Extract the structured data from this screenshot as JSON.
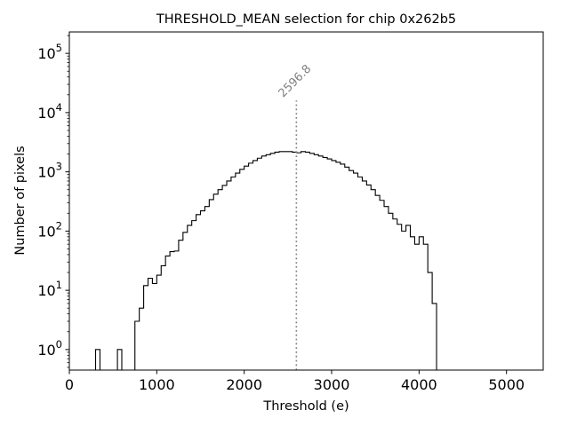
{
  "chart_data": {
    "type": "histogram",
    "title": "THRESHOLD_MEAN selection for chip 0x262b5",
    "xlabel": "Threshold (e)",
    "ylabel": "Number of pixels",
    "xlim": [
      0,
      5420
    ],
    "ylim": [
      0.45,
      230000
    ],
    "yscale": "log",
    "bin_width": 50,
    "xticks": [
      0,
      1000,
      2000,
      3000,
      4000,
      5000
    ],
    "xtick_labels": [
      "0",
      "1000",
      "2000",
      "3000",
      "4000",
      "5000"
    ],
    "yticks": [
      1,
      10,
      100,
      1000,
      10000,
      100000
    ],
    "ytick_labels": [
      {
        "base": "10",
        "exp": "0"
      },
      {
        "base": "10",
        "exp": "1"
      },
      {
        "base": "10",
        "exp": "2"
      },
      {
        "base": "10",
        "exp": "3"
      },
      {
        "base": "10",
        "exp": "4"
      },
      {
        "base": "10",
        "exp": "5"
      }
    ],
    "vline": {
      "x": 2596.8,
      "label": "2596.8",
      "ytop": 16000,
      "color": "#808080"
    },
    "bins": [
      [
        300,
        1
      ],
      [
        550,
        1
      ],
      [
        750,
        3
      ],
      [
        800,
        5
      ],
      [
        850,
        12
      ],
      [
        900,
        16
      ],
      [
        950,
        13
      ],
      [
        1000,
        18
      ],
      [
        1050,
        26
      ],
      [
        1100,
        38
      ],
      [
        1150,
        45
      ],
      [
        1200,
        46
      ],
      [
        1250,
        70
      ],
      [
        1300,
        95
      ],
      [
        1350,
        125
      ],
      [
        1400,
        150
      ],
      [
        1450,
        190
      ],
      [
        1500,
        220
      ],
      [
        1550,
        260
      ],
      [
        1600,
        340
      ],
      [
        1650,
        420
      ],
      [
        1700,
        500
      ],
      [
        1750,
        590
      ],
      [
        1800,
        700
      ],
      [
        1850,
        820
      ],
      [
        1900,
        950
      ],
      [
        1950,
        1100
      ],
      [
        2000,
        1250
      ],
      [
        2050,
        1400
      ],
      [
        2100,
        1550
      ],
      [
        2150,
        1700
      ],
      [
        2200,
        1850
      ],
      [
        2250,
        1950
      ],
      [
        2300,
        2050
      ],
      [
        2350,
        2150
      ],
      [
        2400,
        2200
      ],
      [
        2450,
        2200
      ],
      [
        2500,
        2200
      ],
      [
        2550,
        2150
      ],
      [
        2600,
        2100
      ],
      [
        2650,
        2200
      ],
      [
        2700,
        2150
      ],
      [
        2750,
        2050
      ],
      [
        2800,
        1950
      ],
      [
        2850,
        1850
      ],
      [
        2900,
        1750
      ],
      [
        2950,
        1650
      ],
      [
        3000,
        1550
      ],
      [
        3050,
        1450
      ],
      [
        3100,
        1350
      ],
      [
        3150,
        1200
      ],
      [
        3200,
        1050
      ],
      [
        3250,
        950
      ],
      [
        3300,
        820
      ],
      [
        3350,
        700
      ],
      [
        3400,
        600
      ],
      [
        3450,
        500
      ],
      [
        3500,
        400
      ],
      [
        3550,
        330
      ],
      [
        3600,
        260
      ],
      [
        3650,
        200
      ],
      [
        3700,
        160
      ],
      [
        3750,
        130
      ],
      [
        3800,
        100
      ],
      [
        3850,
        125
      ],
      [
        3900,
        80
      ],
      [
        3950,
        60
      ],
      [
        4000,
        80
      ],
      [
        4050,
        60
      ],
      [
        4100,
        20
      ],
      [
        4150,
        6
      ]
    ]
  }
}
